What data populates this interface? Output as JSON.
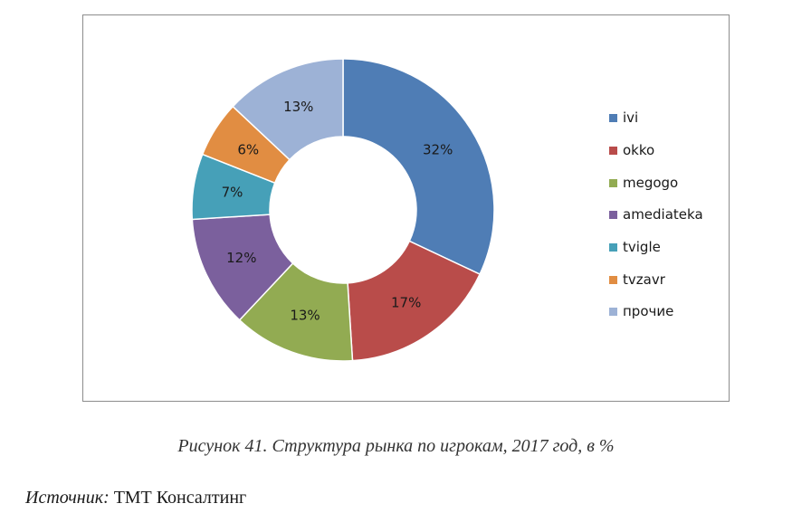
{
  "chart_data": {
    "type": "pie",
    "donut": true,
    "categories": [
      "ivi",
      "okko",
      "megogo",
      "amediateka",
      "tvigle",
      "tvzavr",
      "прочие"
    ],
    "values": [
      32,
      17,
      13,
      12,
      7,
      6,
      13
    ],
    "data_labels": [
      "32%",
      "17%",
      "13%",
      "12%",
      "7%",
      "6%",
      "13%"
    ],
    "colors": [
      "#4f7db5",
      "#b94c4a",
      "#92ab52",
      "#7b609d",
      "#46a0b8",
      "#e18d42",
      "#9db2d6"
    ],
    "legend_position": "right",
    "start_angle_deg": 0,
    "direction": "clockwise"
  },
  "caption": {
    "text": "Рисунок 41. Структура рынка по игрокам, 2017 год, в %"
  },
  "source": {
    "label": "Источник:",
    "text": "ТМТ Консалтинг"
  }
}
